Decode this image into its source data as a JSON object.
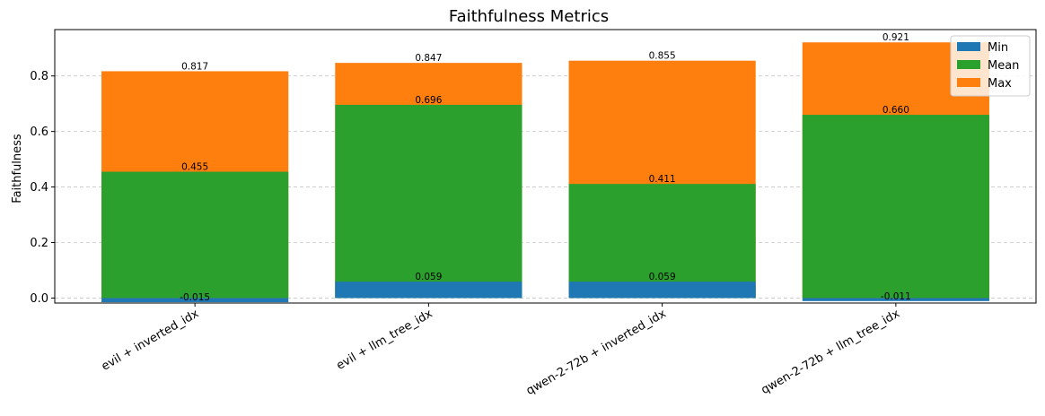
{
  "chart_data": {
    "type": "bar",
    "title": "Faithfulness Metrics",
    "xlabel": "",
    "ylabel": "Faithfulness",
    "categories": [
      "evil + inverted_idx",
      "evil + llm_tree_idx",
      "qwen-2-72b + inverted_idx",
      "qwen-2-72b + llm_tree_idx"
    ],
    "series": [
      {
        "name": "Min",
        "values": [
          -0.015,
          0.059,
          0.059,
          -0.011
        ],
        "color": "#1f77b4",
        "labels": [
          "-0.015",
          "0.059",
          "0.059",
          "-0.011"
        ]
      },
      {
        "name": "Mean",
        "values": [
          0.455,
          0.696,
          0.411,
          0.66
        ],
        "color": "#2ca02c",
        "labels": [
          "0.455",
          "0.696",
          "0.411",
          "0.660"
        ]
      },
      {
        "name": "Max",
        "values": [
          0.817,
          0.847,
          0.855,
          0.921
        ],
        "color": "#ff7f0e",
        "labels": [
          "0.817",
          "0.847",
          "0.855",
          "0.921"
        ]
      }
    ],
    "draw_order": [
      "Max",
      "Mean",
      "Min"
    ],
    "ylim": [
      -0.018,
      0.967
    ],
    "yticks": [
      0.0,
      0.2,
      0.4,
      0.6,
      0.8
    ],
    "ytick_labels": [
      "0.0",
      "0.2",
      "0.4",
      "0.6",
      "0.8"
    ],
    "grid": true,
    "legend_position": "top-right"
  }
}
